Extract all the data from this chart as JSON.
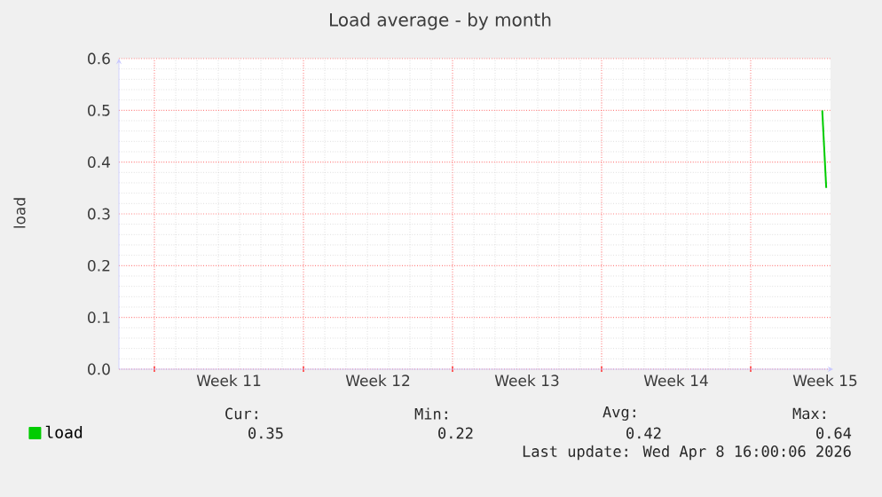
{
  "chart_data": {
    "type": "line",
    "title": "Load average - by month",
    "ylabel": "load",
    "x": [
      "2026-04-09T08:40",
      "2026-04-09T13:10"
    ],
    "series": [
      {
        "name": "load",
        "color": "#00cc00",
        "values": [
          0.5,
          0.35
        ]
      }
    ],
    "xlim": [
      "2026-03-07T08:00",
      "2026-04-09T18:00"
    ],
    "xticks": [
      {
        "value": "2026-03-09T00:00",
        "label": null
      },
      {
        "value": "2026-03-12T12:00",
        "label": "Week 11"
      },
      {
        "value": "2026-03-16T00:00",
        "label": null
      },
      {
        "value": "2026-03-19T12:00",
        "label": "Week 12"
      },
      {
        "value": "2026-03-23T00:00",
        "label": null
      },
      {
        "value": "2026-03-26T12:00",
        "label": "Week 13"
      },
      {
        "value": "2026-03-30T00:00",
        "label": null
      },
      {
        "value": "2026-04-02T12:00",
        "label": "Week 14"
      },
      {
        "value": "2026-04-06T00:00",
        "label": null
      },
      {
        "value": "2026-04-09T12:00",
        "label": "Week 15"
      }
    ],
    "ylim": [
      0,
      0.6
    ],
    "yticks": [
      {
        "value": 0,
        "label": "0.0"
      },
      {
        "value": 0.1,
        "label": "0.1"
      },
      {
        "value": 0.2,
        "label": "0.2"
      },
      {
        "value": 0.3,
        "label": "0.3"
      },
      {
        "value": 0.4,
        "label": "0.4"
      },
      {
        "value": 0.5,
        "label": "0.5"
      },
      {
        "value": 0.6,
        "label": "0.6"
      }
    ],
    "grid": true,
    "legend": "bottom left",
    "marker": "none",
    "line_style": "solid",
    "annotations": [
      "Cur:",
      "0.35",
      "Min:",
      "0.22",
      "Avg:",
      "0.42",
      "Max:",
      "0.64",
      "Last update: Wed Apr  8 16:00:06 2026"
    ]
  }
}
